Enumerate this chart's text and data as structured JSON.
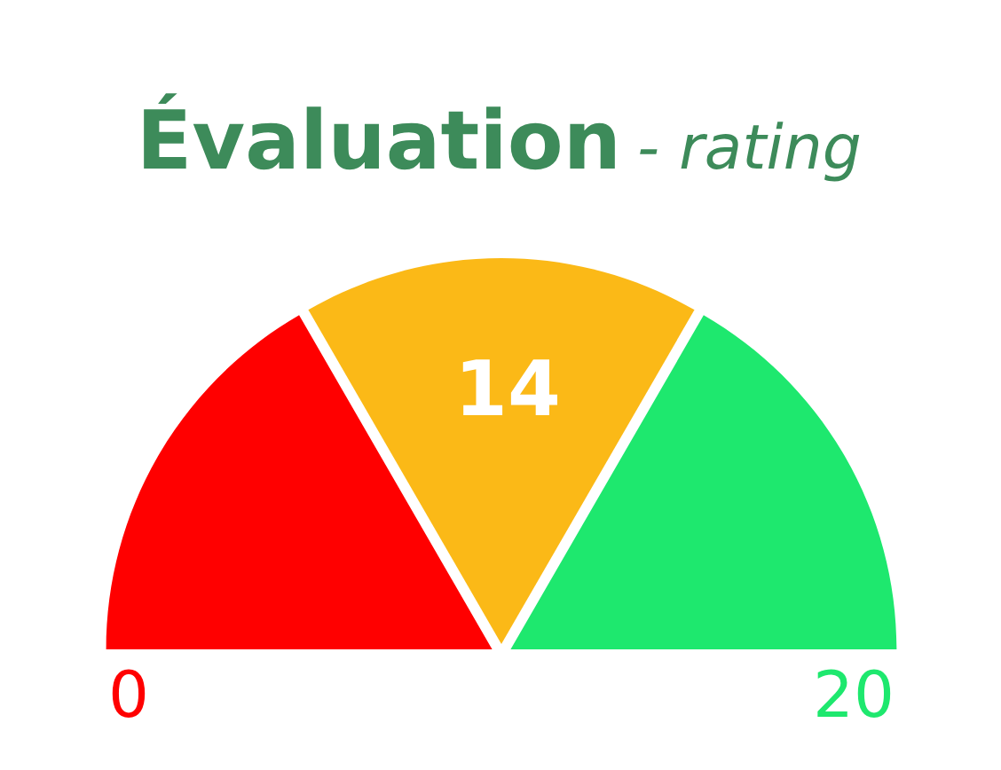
{
  "chart_data": {
    "type": "pie",
    "title": "Évaluation",
    "subtitle": "- rating",
    "categories": [
      null,
      null,
      null
    ],
    "values": [
      33.33,
      33.34,
      33.33
    ],
    "colors": [
      "#ff0000",
      "#fbb917",
      "#1ee86e"
    ],
    "annotations": [
      "0",
      "20",
      "14"
    ]
  }
}
